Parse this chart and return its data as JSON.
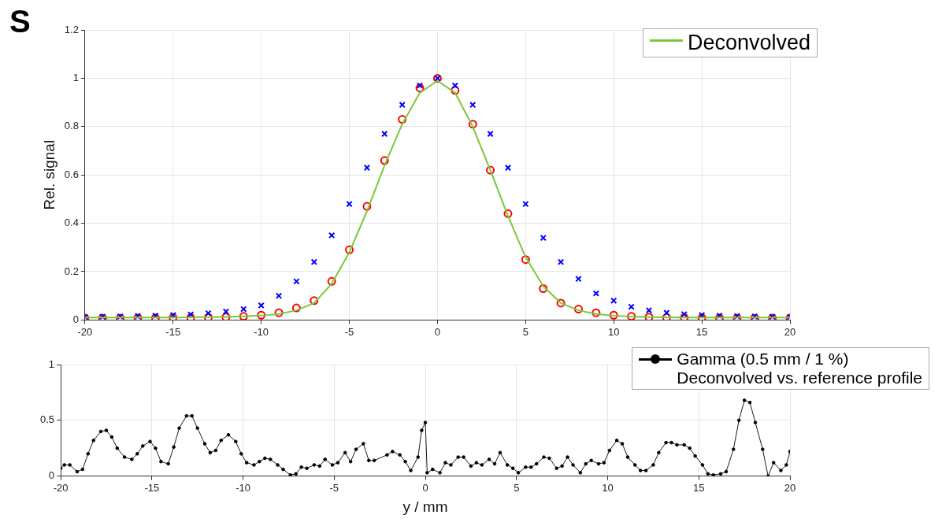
{
  "chart_data": [
    {
      "type": "scatter",
      "ylabel": "Rel. signal",
      "annotations": [
        "S"
      ],
      "xlim": [
        -20,
        20
      ],
      "xticks": [
        -20,
        -15,
        -10,
        -5,
        0,
        5,
        10,
        15,
        20
      ],
      "ylim": [
        0,
        1.2
      ],
      "yticks": [
        0,
        0.2,
        0.4,
        0.6,
        0.8,
        1,
        1.2
      ],
      "grid": true,
      "legend": "top right",
      "series": [
        {
          "marker": "cross",
          "color": "#0000ff",
          "x": [
            -20,
            -19,
            -18,
            -17,
            -16,
            -15,
            -14,
            -13,
            -12,
            -11,
            -10,
            -9,
            -8,
            -7,
            -6,
            -5,
            -4,
            -3,
            -2,
            -1,
            0,
            1,
            2,
            3,
            4,
            5,
            6,
            7,
            8,
            9,
            10,
            11,
            12,
            13,
            14,
            15,
            16,
            17,
            18,
            19,
            20
          ],
          "values": [
            0.013,
            0.014,
            0.015,
            0.016,
            0.018,
            0.02,
            0.023,
            0.028,
            0.035,
            0.045,
            0.06,
            0.1,
            0.16,
            0.24,
            0.35,
            0.48,
            0.63,
            0.77,
            0.89,
            0.97,
            1,
            0.97,
            0.89,
            0.77,
            0.63,
            0.48,
            0.34,
            0.24,
            0.17,
            0.11,
            0.08,
            0.055,
            0.04,
            0.03,
            0.024,
            0.02,
            0.018,
            0.016,
            0.015,
            0.014,
            0.013
          ]
        },
        {
          "marker": "circle",
          "color": "#ff0000",
          "x": [
            -20,
            -19,
            -18,
            -17,
            -16,
            -15,
            -14,
            -13,
            -12,
            -11,
            -10,
            -9,
            -8,
            -7,
            -6,
            -5,
            -4,
            -3,
            -2,
            -1,
            0,
            1,
            2,
            3,
            4,
            5,
            6,
            7,
            8,
            9,
            10,
            11,
            12,
            13,
            14,
            15,
            16,
            17,
            18,
            19,
            20
          ],
          "values": [
            0.008,
            0.008,
            0.008,
            0.009,
            0.009,
            0.01,
            0.01,
            0.011,
            0.012,
            0.015,
            0.02,
            0.03,
            0.05,
            0.08,
            0.16,
            0.29,
            0.47,
            0.66,
            0.83,
            0.96,
            1,
            0.95,
            0.81,
            0.62,
            0.44,
            0.25,
            0.13,
            0.07,
            0.045,
            0.03,
            0.02,
            0.015,
            0.012,
            0.01,
            0.01,
            0.009,
            0.009,
            0.008,
            0.008,
            0.008,
            0.008
          ]
        },
        {
          "type": "line",
          "name": "Deconvolved",
          "marker": "none",
          "line_style": "solid",
          "color": "#77c93a",
          "x": [
            -20,
            -19,
            -18,
            -17,
            -16,
            -15,
            -14,
            -13,
            -12,
            -11,
            -10,
            -9,
            -8,
            -7,
            -6,
            -5,
            -4,
            -3,
            -2,
            -1,
            0,
            1,
            2,
            3,
            4,
            5,
            6,
            7,
            8,
            9,
            10,
            11,
            12,
            13,
            14,
            15,
            16,
            17,
            18,
            19,
            20
          ],
          "values": [
            0.01,
            0.01,
            0.01,
            0.01,
            0.01,
            0.01,
            0.011,
            0.012,
            0.013,
            0.015,
            0.018,
            0.025,
            0.04,
            0.07,
            0.15,
            0.28,
            0.45,
            0.64,
            0.81,
            0.94,
            0.99,
            0.94,
            0.8,
            0.62,
            0.43,
            0.26,
            0.14,
            0.07,
            0.04,
            0.025,
            0.018,
            0.014,
            0.012,
            0.011,
            0.01,
            0.01,
            0.01,
            0.01,
            0.01,
            0.01,
            0.01
          ]
        }
      ]
    },
    {
      "type": "line",
      "xlabel": "y / mm",
      "xlim": [
        -20,
        20
      ],
      "xticks": [
        -20,
        -15,
        -10,
        -5,
        0,
        5,
        10,
        15,
        20
      ],
      "ylim": [
        0,
        1
      ],
      "yticks": [
        0,
        0.5,
        1
      ],
      "grid": true,
      "legend": "top right",
      "marker": "circle",
      "line_style": "solid",
      "series": [
        {
          "name": "Gamma (0.5 mm / 1 %)\nDeconvolved vs. reference profile",
          "color": "#000000",
          "x": [
            -20,
            -19.8,
            -19.5,
            -19.1,
            -18.8,
            -18.5,
            -18.2,
            -17.8,
            -17.5,
            -17.2,
            -16.9,
            -16.5,
            -16.1,
            -15.8,
            -15.5,
            -15.1,
            -14.8,
            -14.5,
            -14.1,
            -13.8,
            -13.5,
            -13.1,
            -12.8,
            -12.5,
            -12.1,
            -11.8,
            -11.5,
            -11.2,
            -10.8,
            -10.4,
            -10.1,
            -9.8,
            -9.4,
            -9.1,
            -8.8,
            -8.5,
            -8.1,
            -7.8,
            -7.4,
            -7.1,
            -6.8,
            -6.5,
            -6.1,
            -5.8,
            -5.5,
            -5.1,
            -4.8,
            -4.4,
            -4.1,
            -3.8,
            -3.4,
            -3.1,
            -2.8,
            -2.1,
            -1.8,
            -1.4,
            -1.1,
            -0.8,
            -0.4,
            -0.2,
            0,
            0.1,
            0.4,
            0.8,
            1.1,
            1.4,
            1.8,
            2.1,
            2.5,
            2.8,
            3.1,
            3.5,
            3.8,
            4.1,
            4.5,
            4.8,
            5.1,
            5.5,
            5.8,
            6.1,
            6.5,
            6.8,
            7.2,
            7.5,
            7.8,
            8.1,
            8.5,
            8.8,
            9.1,
            9.5,
            9.8,
            10.1,
            10.5,
            10.8,
            11.1,
            11.5,
            11.8,
            12.1,
            12.5,
            12.8,
            13.2,
            13.5,
            13.8,
            14.2,
            14.5,
            14.8,
            15.2,
            15.5,
            15.8,
            16.2,
            16.5,
            16.9,
            17.2,
            17.5,
            17.8,
            18.1,
            18.5,
            18.8,
            19.1,
            19.5,
            19.8,
            20
          ],
          "values": [
            0.07,
            0.1,
            0.1,
            0.04,
            0.06,
            0.2,
            0.32,
            0.4,
            0.41,
            0.35,
            0.25,
            0.17,
            0.15,
            0.2,
            0.27,
            0.31,
            0.25,
            0.13,
            0.11,
            0.26,
            0.43,
            0.54,
            0.54,
            0.43,
            0.29,
            0.21,
            0.23,
            0.32,
            0.37,
            0.31,
            0.2,
            0.12,
            0.1,
            0.13,
            0.16,
            0.15,
            0.1,
            0.06,
            0.01,
            0.02,
            0.08,
            0.07,
            0.1,
            0.09,
            0.15,
            0.1,
            0.12,
            0.21,
            0.13,
            0.24,
            0.29,
            0.14,
            0.14,
            0.19,
            0.22,
            0.19,
            0.13,
            0.05,
            0.17,
            0.41,
            0.48,
            0.03,
            0.06,
            0.03,
            0.12,
            0.1,
            0.17,
            0.17,
            0.09,
            0.12,
            0.1,
            0.15,
            0.11,
            0.21,
            0.1,
            0.07,
            0.03,
            0.08,
            0.08,
            0.11,
            0.17,
            0.16,
            0.07,
            0.09,
            0.17,
            0.1,
            0.03,
            0.11,
            0.14,
            0.11,
            0.12,
            0.23,
            0.32,
            0.29,
            0.17,
            0.1,
            0.05,
            0.05,
            0.1,
            0.21,
            0.3,
            0.3,
            0.28,
            0.28,
            0.25,
            0.18,
            0.1,
            0.02,
            0.01,
            0.02,
            0.04,
            0.24,
            0.5,
            0.68,
            0.66,
            0.48,
            0.24,
            0,
            0.12,
            0.05,
            0.1,
            0.22
          ]
        }
      ]
    }
  ]
}
